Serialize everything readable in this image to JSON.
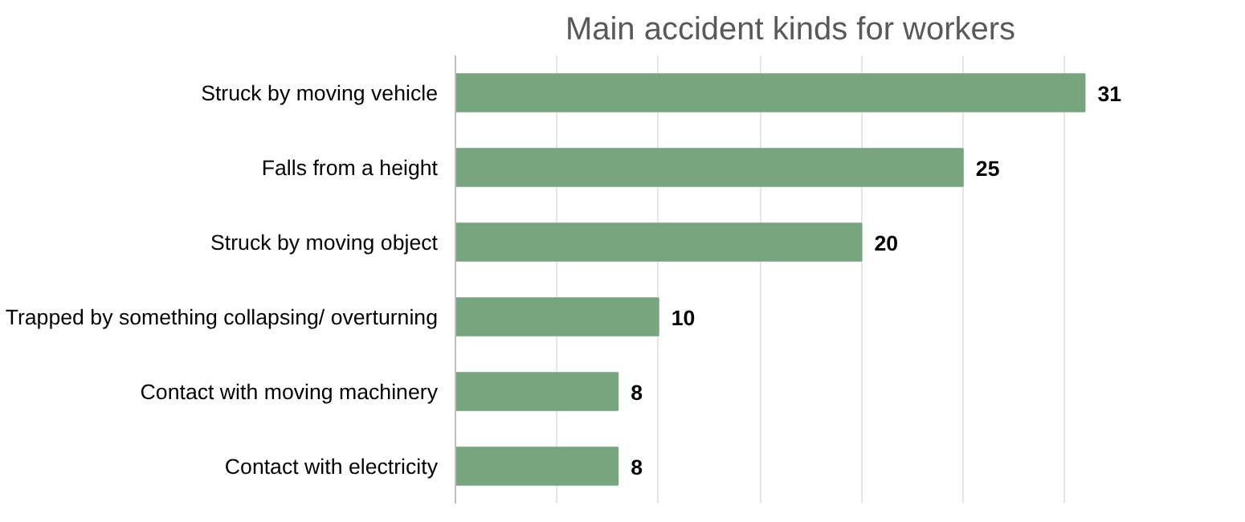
{
  "chart_data": {
    "type": "bar",
    "title": "Main accident kinds for workers",
    "orientation": "horizontal",
    "categories": [
      "Struck by moving vehicle",
      "Falls from a height",
      "Struck by moving object",
      "Trapped by something collapsing/ overturning",
      "Contact with moving machinery",
      "Contact with electricity"
    ],
    "values": [
      31,
      25,
      20,
      10,
      8,
      8
    ],
    "color": "#77a57d",
    "xticks": [
      {
        "value": 0,
        "label": null
      },
      {
        "value": 5,
        "label": null
      },
      {
        "value": 10,
        "label": null
      },
      {
        "value": 15,
        "label": null
      },
      {
        "value": 20,
        "label": null
      },
      {
        "value": 25,
        "label": null
      },
      {
        "value": 30,
        "label": null
      }
    ],
    "grid": "x",
    "data_labels": true,
    "tick_labels": "y"
  }
}
